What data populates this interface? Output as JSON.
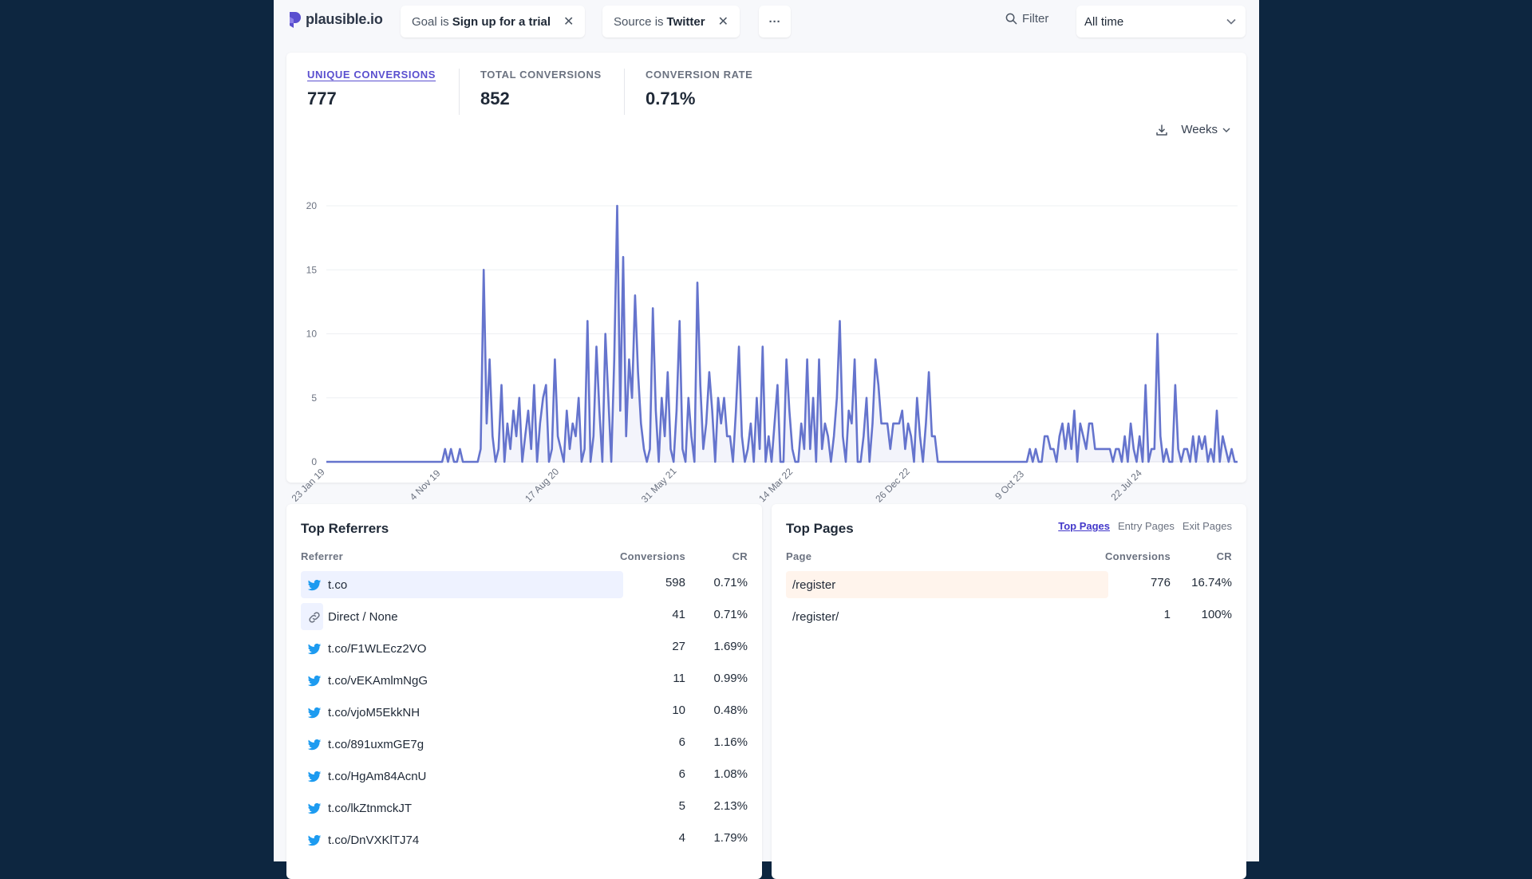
{
  "app": {
    "name": "plausible.io"
  },
  "filters": [
    {
      "prefix": "Goal is",
      "value": "Sign up for a trial"
    },
    {
      "prefix": "Source is",
      "value": "Twitter"
    }
  ],
  "toolbar": {
    "more_label": "···",
    "filter_label": "Filter",
    "period_label": "All time"
  },
  "stats": [
    {
      "label": "UNIQUE CONVERSIONS",
      "value": "777"
    },
    {
      "label": "TOTAL CONVERSIONS",
      "value": "852"
    },
    {
      "label": "CONVERSION RATE",
      "value": "0.71%"
    }
  ],
  "chart_controls": {
    "interval_label": "Weeks"
  },
  "chart_data": {
    "type": "area",
    "ylim": [
      0,
      20
    ],
    "y_ticks": [
      "0",
      "5",
      "10",
      "15",
      "20"
    ],
    "x_tick_labels": [
      "23 Jan 19",
      "4 Nov 19",
      "17 Aug 20",
      "31 May 21",
      "14 Mar 22",
      "26 Dec 22",
      "9 Oct 23",
      "22 Jul 24"
    ],
    "series": [
      {
        "color": "#6574cd",
        "values": [
          0,
          0,
          0,
          0,
          0,
          0,
          0,
          0,
          0,
          0,
          0,
          0,
          0,
          0,
          0,
          0,
          0,
          0,
          0,
          0,
          0,
          0,
          0,
          0,
          0,
          0,
          0,
          0,
          0,
          0,
          0,
          0,
          0,
          0,
          0,
          0,
          0,
          0,
          0,
          0,
          1,
          0,
          1,
          0,
          0,
          1,
          0,
          0,
          0,
          0,
          0,
          0,
          1,
          15,
          3,
          8,
          2,
          0,
          1,
          6,
          0,
          3,
          1,
          4,
          2,
          5,
          0,
          2,
          4,
          1,
          6,
          0,
          3,
          5,
          6,
          0,
          1,
          8,
          2,
          1,
          0,
          4,
          1,
          3,
          2,
          5,
          0,
          1,
          11,
          0,
          2,
          9,
          4,
          0,
          10,
          5,
          0,
          8,
          20,
          4,
          16,
          2,
          8,
          5,
          13,
          7,
          3,
          1,
          0,
          1,
          12,
          4,
          0,
          5,
          2,
          7,
          1,
          0,
          4,
          11,
          1,
          0,
          5,
          2,
          0,
          14,
          6,
          1,
          3,
          7,
          4,
          0,
          5,
          3,
          5,
          2,
          2,
          0,
          4,
          9,
          2,
          0,
          1,
          3,
          0,
          5,
          1,
          9,
          0,
          2,
          0,
          3,
          6,
          0,
          0,
          8,
          4,
          1,
          0,
          0,
          3,
          1,
          8,
          1,
          5,
          0,
          8,
          1,
          3,
          2,
          0,
          2,
          5,
          11,
          2,
          0,
          4,
          3,
          8,
          0,
          0,
          2,
          5,
          0,
          3,
          8,
          6,
          3,
          3,
          3,
          1,
          3,
          3,
          3,
          4,
          1,
          3,
          2,
          0,
          5,
          2,
          0,
          3,
          7,
          2,
          2,
          0,
          0,
          0,
          0,
          0,
          0,
          0,
          0,
          0,
          0,
          0,
          0,
          0,
          0,
          0,
          0,
          0,
          0,
          0,
          0,
          0,
          0,
          0,
          0,
          0,
          0,
          0,
          0,
          0,
          0,
          0,
          1,
          0,
          1,
          0,
          0,
          2,
          2,
          1,
          1,
          0,
          2,
          3,
          1,
          3,
          1,
          4,
          0,
          3,
          2,
          1,
          3,
          3,
          1,
          1,
          1,
          1,
          1,
          1,
          0,
          1,
          1,
          0,
          2,
          0,
          3,
          1,
          0,
          2,
          0,
          6,
          0,
          1,
          1,
          10,
          2,
          0,
          1,
          0,
          0,
          6,
          1,
          0,
          1,
          1,
          0,
          2,
          0,
          2,
          1,
          2,
          0,
          1,
          0,
          4,
          0,
          2,
          1,
          0,
          1,
          0,
          0
        ]
      }
    ]
  },
  "referrers": {
    "title": "Top Referrers",
    "columns": [
      "Referrer",
      "Conversions",
      "CR"
    ],
    "rows": [
      {
        "icon": "twitter",
        "label": "t.co",
        "conversions": "598",
        "cr": "0.71%",
        "share": 1.0
      },
      {
        "icon": "link",
        "label": "Direct / None",
        "conversions": "41",
        "cr": "0.71%",
        "share": 0.069
      },
      {
        "icon": "twitter",
        "label": "t.co/F1WLEcz2VO",
        "conversions": "27",
        "cr": "1.69%",
        "share": 0.045
      },
      {
        "icon": "twitter",
        "label": "t.co/vEKAmlmNgG",
        "conversions": "11",
        "cr": "0.99%",
        "share": 0.018
      },
      {
        "icon": "twitter",
        "label": "t.co/vjoM5EkkNH",
        "conversions": "10",
        "cr": "0.48%",
        "share": 0.017
      },
      {
        "icon": "twitter",
        "label": "t.co/891uxmGE7g",
        "conversions": "6",
        "cr": "1.16%",
        "share": 0.01
      },
      {
        "icon": "twitter",
        "label": "t.co/HgAm84AcnU",
        "conversions": "6",
        "cr": "1.08%",
        "share": 0.01
      },
      {
        "icon": "twitter",
        "label": "t.co/lkZtnmckJT",
        "conversions": "5",
        "cr": "2.13%",
        "share": 0.008
      },
      {
        "icon": "twitter",
        "label": "t.co/DnVXKlTJ74",
        "conversions": "4",
        "cr": "1.79%",
        "share": 0.007
      }
    ]
  },
  "pages": {
    "title": "Top Pages",
    "tabs": [
      "Top Pages",
      "Entry Pages",
      "Exit Pages"
    ],
    "columns": [
      "Page",
      "Conversions",
      "CR"
    ],
    "rows": [
      {
        "label": "/register",
        "conversions": "776",
        "cr": "16.74%",
        "share": 1.0
      },
      {
        "label": "/register/",
        "conversions": "1",
        "cr": "100%",
        "share": 0.0013
      }
    ]
  },
  "colors": {
    "accent": "#5a4fcf",
    "line": "#6574cd",
    "ref_bar": "#eef2ff",
    "page_bar": "#fff4ec"
  }
}
